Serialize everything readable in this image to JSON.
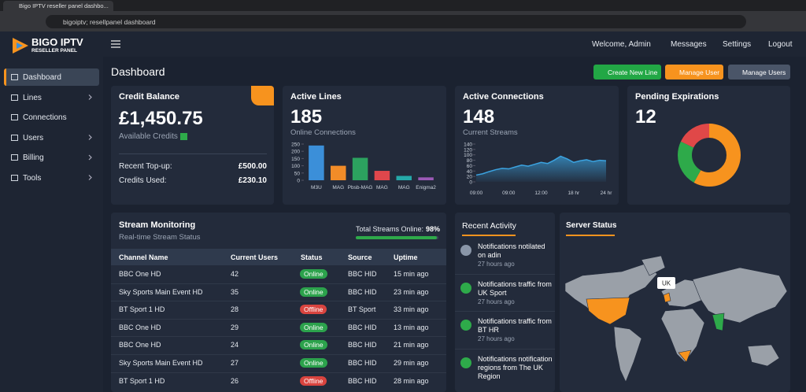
{
  "browser": {
    "tab_title": "Bigo IPTV reseller panel dashbo...",
    "url": "bigoiptv; resellpanel dashboard"
  },
  "logo": {
    "name": "BIGO IPTV",
    "tagline": "RESELLER PANEL"
  },
  "sidebar": [
    {
      "label": "Dashboard",
      "active": true
    },
    {
      "label": "Lines",
      "submenu": true
    },
    {
      "label": "Connections"
    },
    {
      "label": "Users",
      "submenu": true
    },
    {
      "label": "Billing",
      "submenu": true
    },
    {
      "label": "Tools",
      "submenu": true
    }
  ],
  "topbar": {
    "welcome": "Welcome, Admin",
    "messages": "Messages",
    "settings": "Settings",
    "logout": "Logout"
  },
  "page_title": "Dashboard",
  "buttons": [
    {
      "label": "Create New Line",
      "color": "#22a745"
    },
    {
      "label": "Manage User",
      "color": "#f7931e"
    },
    {
      "label": "Manage Users",
      "color": "#4a5568"
    }
  ],
  "credit": {
    "title": "Credit Balance",
    "amount": "£1,450.75",
    "caption": "Available Credits",
    "rows": [
      [
        "Recent Top-up:",
        "£500.00"
      ],
      [
        "Credits Used:",
        "£230.10"
      ]
    ]
  },
  "active_lines": {
    "title": "Active Lines",
    "value": 185,
    "caption": "Online Connections",
    "chart": {
      "type": "bar",
      "categories": [
        "M3U",
        "MAG",
        "Pbsb-MAG",
        "MAG",
        "MAG",
        "Enigma2"
      ],
      "values": [
        240,
        100,
        155,
        65,
        30,
        20
      ],
      "colors": [
        "#3b8fd9",
        "#f28c28",
        "#2ca25f",
        "#e0474c",
        "#25a9a9",
        "#9b59b6"
      ],
      "ylim": [
        0,
        250
      ],
      "yticks": [
        0,
        50,
        100,
        150,
        200,
        250
      ]
    }
  },
  "active_connections": {
    "title": "Active Connections",
    "value": 148,
    "caption": "Current Streams",
    "chart": {
      "type": "area",
      "x_labels": [
        "09:00",
        "09:00",
        "12:00",
        "18 hr",
        "24 hr"
      ],
      "values": [
        25,
        30,
        38,
        45,
        50,
        48,
        55,
        62,
        58,
        65,
        72,
        68,
        80,
        95,
        85,
        72,
        78,
        82,
        75,
        80,
        78
      ],
      "color": "#3ba3e0",
      "ylim": [
        0,
        140
      ],
      "yticks": [
        0,
        20,
        40,
        60,
        80,
        100,
        120,
        140
      ]
    }
  },
  "pending": {
    "title": "Pending Expirations",
    "value": 12,
    "chart": {
      "type": "donut",
      "values": [
        58,
        24,
        18
      ],
      "colors": [
        "#f7931e",
        "#2eaa4a",
        "#e04848"
      ]
    }
  },
  "stream": {
    "title": "Stream Monitoring",
    "subtitle": "Real-time Stream Status",
    "total_label": "Total Streams Online:",
    "total": "98%",
    "total_value": 98,
    "table": {
      "headers": [
        "Channel Name",
        "Current Users",
        "Status",
        "Source",
        "Uptime"
      ],
      "status_colors": {
        "Online": "#2ca24c",
        "Offline": "#d9443f"
      },
      "rows": [
        [
          "BBC One HD",
          42,
          "Online",
          "BBC HID",
          "15 min ago"
        ],
        [
          "Sky Sports Main Event HD",
          35,
          "Online",
          "BBC HID",
          "23 min ago"
        ],
        [
          "BT Sport 1 HD",
          28,
          "Offline",
          "BT Sport",
          "33 min ago"
        ],
        [
          "BBC One HD",
          29,
          "Online",
          "BBC HID",
          "13 min ago"
        ],
        [
          "BBC One HD",
          24,
          "Online",
          "BBC HID",
          "21 min ago"
        ],
        [
          "Sky Sports Main Event HD",
          27,
          "Online",
          "BBC HID",
          "29 min ago"
        ],
        [
          "BT Sport 1 HD",
          26,
          "Offline",
          "BBC HID",
          "28 min ago"
        ]
      ]
    }
  },
  "activity": {
    "title": "Recent Activity",
    "items": [
      {
        "text": "Notifications notilated on adin",
        "time": "27 hours ago"
      },
      {
        "text": "Notifications traffic from UK Sport",
        "time": "27 hours ago"
      },
      {
        "text": "Notifications traffic from BT HR",
        "time": "27 hours ago"
      },
      {
        "text": "Notifications notification regions from The UK Region"
      }
    ]
  },
  "server": {
    "title": "Server Status",
    "marker": "UK"
  }
}
